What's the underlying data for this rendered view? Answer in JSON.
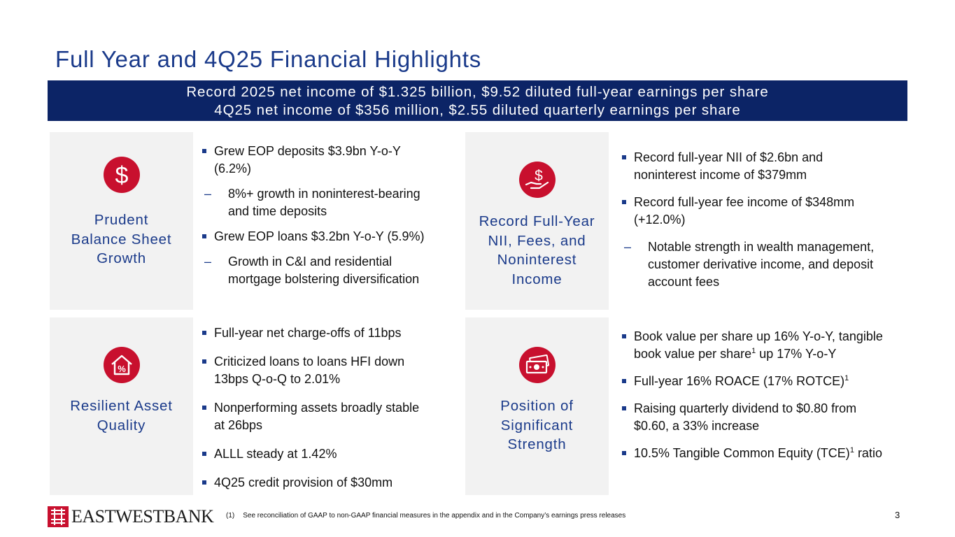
{
  "title": "Full Year and 4Q25 Financial Highlights",
  "banner": {
    "line1": "Record 2025 net income of $1.325 billion, $9.52 diluted full-year earnings per share",
    "line2": "4Q25 net income of $356 million, $2.55 diluted quarterly earnings per share"
  },
  "colors": {
    "title": "#1a3a8a",
    "banner_bg": "#0c2466",
    "icon_red": "#c8102e",
    "panel_bg": "#f2f2f2"
  },
  "sections": {
    "balance": {
      "icon": "dollar-icon",
      "label": [
        "Prudent",
        "Balance Sheet",
        "Growth"
      ],
      "bullets": [
        {
          "type": "square",
          "lines": [
            "Grew EOP deposits $3.9bn Y-o-Y",
            "(6.2%)"
          ]
        },
        {
          "type": "dash",
          "lines": [
            "8%+ growth in noninterest-bearing",
            "and time deposits"
          ]
        },
        {
          "type": "square",
          "lines": [
            "Grew EOP loans $3.2bn Y-o-Y (5.9%)"
          ]
        },
        {
          "type": "dash",
          "lines": [
            "Growth in C&I and residential",
            "mortgage bolstering diversification"
          ]
        }
      ]
    },
    "record": {
      "icon": "hand-dollar-icon",
      "label": [
        "Record Full-Year",
        "NII, Fees, and",
        "Noninterest",
        "Income"
      ],
      "bullets": [
        {
          "type": "square",
          "lines": [
            "Record full-year NII of $2.6bn and",
            "noninterest income of $379mm"
          ]
        },
        {
          "type": "square",
          "lines": [
            "Record full-year fee income of $348mm",
            "(+12.0%)"
          ]
        },
        {
          "type": "dash",
          "lines": [
            "Notable strength in wealth management,",
            "customer derivative income, and deposit",
            "account fees"
          ]
        }
      ]
    },
    "asset": {
      "icon": "house-percent-icon",
      "label": [
        "Resilient Asset",
        "Quality"
      ],
      "bullets": [
        {
          "type": "square",
          "lines": [
            "Full-year net charge-offs of 11bps"
          ]
        },
        {
          "type": "square",
          "lines": [
            "Criticized loans to loans HFI down",
            "13bps Q-o-Q to 2.01%"
          ]
        },
        {
          "type": "square",
          "lines": [
            "Nonperforming assets broadly stable",
            "at 26bps"
          ]
        },
        {
          "type": "square",
          "lines": [
            "ALLL steady at 1.42%"
          ]
        },
        {
          "type": "square",
          "lines": [
            "4Q25 credit provision of $30mm"
          ]
        }
      ]
    },
    "strength": {
      "icon": "cash-icon",
      "label": [
        "Position of",
        "Significant",
        "Strength"
      ],
      "bullets": [
        {
          "type": "square",
          "lines": [
            "Book value per share up 16% Y-o-Y, tangible",
            "book value per share<sup>1</sup> up 17% Y-o-Y"
          ]
        },
        {
          "type": "square",
          "lines": [
            "Full-year 16% ROACE (17% ROTCE)<sup>1</sup>"
          ]
        },
        {
          "type": "square",
          "lines": [
            "Raising quarterly dividend to $0.80 from",
            "$0.60, a 33% increase"
          ]
        },
        {
          "type": "square",
          "lines": [
            "10.5% Tangible Common Equity (TCE)<sup>1</sup> ratio"
          ]
        }
      ]
    }
  },
  "footer": {
    "logo_text": "EASTWESTBANK",
    "footnote_num": "(1)",
    "footnote_text": "See reconciliation of GAAP to non-GAAP financial measures in the appendix and in the Company’s earnings press releases",
    "page_number": "3"
  }
}
